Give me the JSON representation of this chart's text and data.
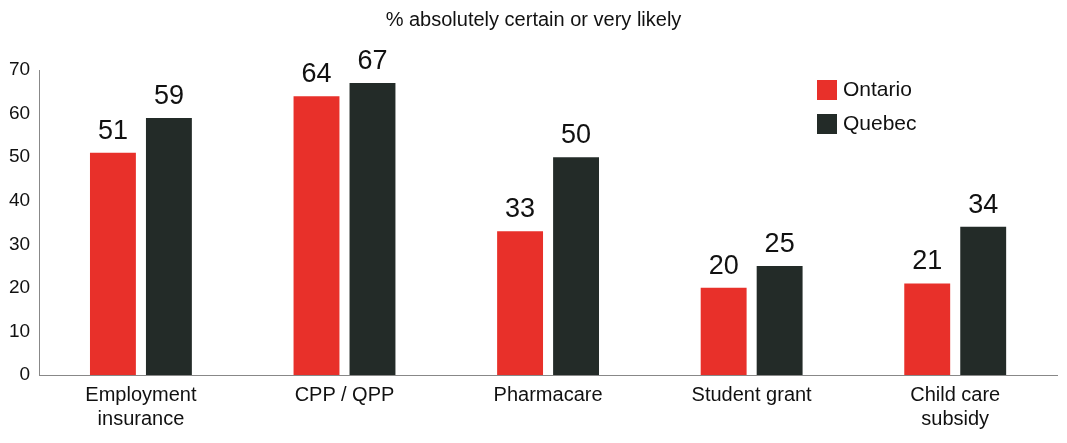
{
  "chart_data": {
    "type": "bar",
    "title": "% absolutely certain or very likely",
    "categories": [
      "Employment insurance",
      "CPP / QPP",
      "Pharmacare",
      "Student grant",
      "Child care subsidy"
    ],
    "series": [
      {
        "name": "Ontario",
        "color": "#e8302a",
        "values": [
          51,
          64,
          33,
          20,
          21
        ]
      },
      {
        "name": "Quebec",
        "color": "#232b28",
        "values": [
          59,
          67,
          50,
          25,
          34
        ]
      }
    ],
    "ylim": [
      0,
      70
    ],
    "yticks": [
      0,
      10,
      20,
      30,
      40,
      50,
      60,
      70
    ],
    "grid": false,
    "legend": "top right",
    "data_labels": true
  }
}
